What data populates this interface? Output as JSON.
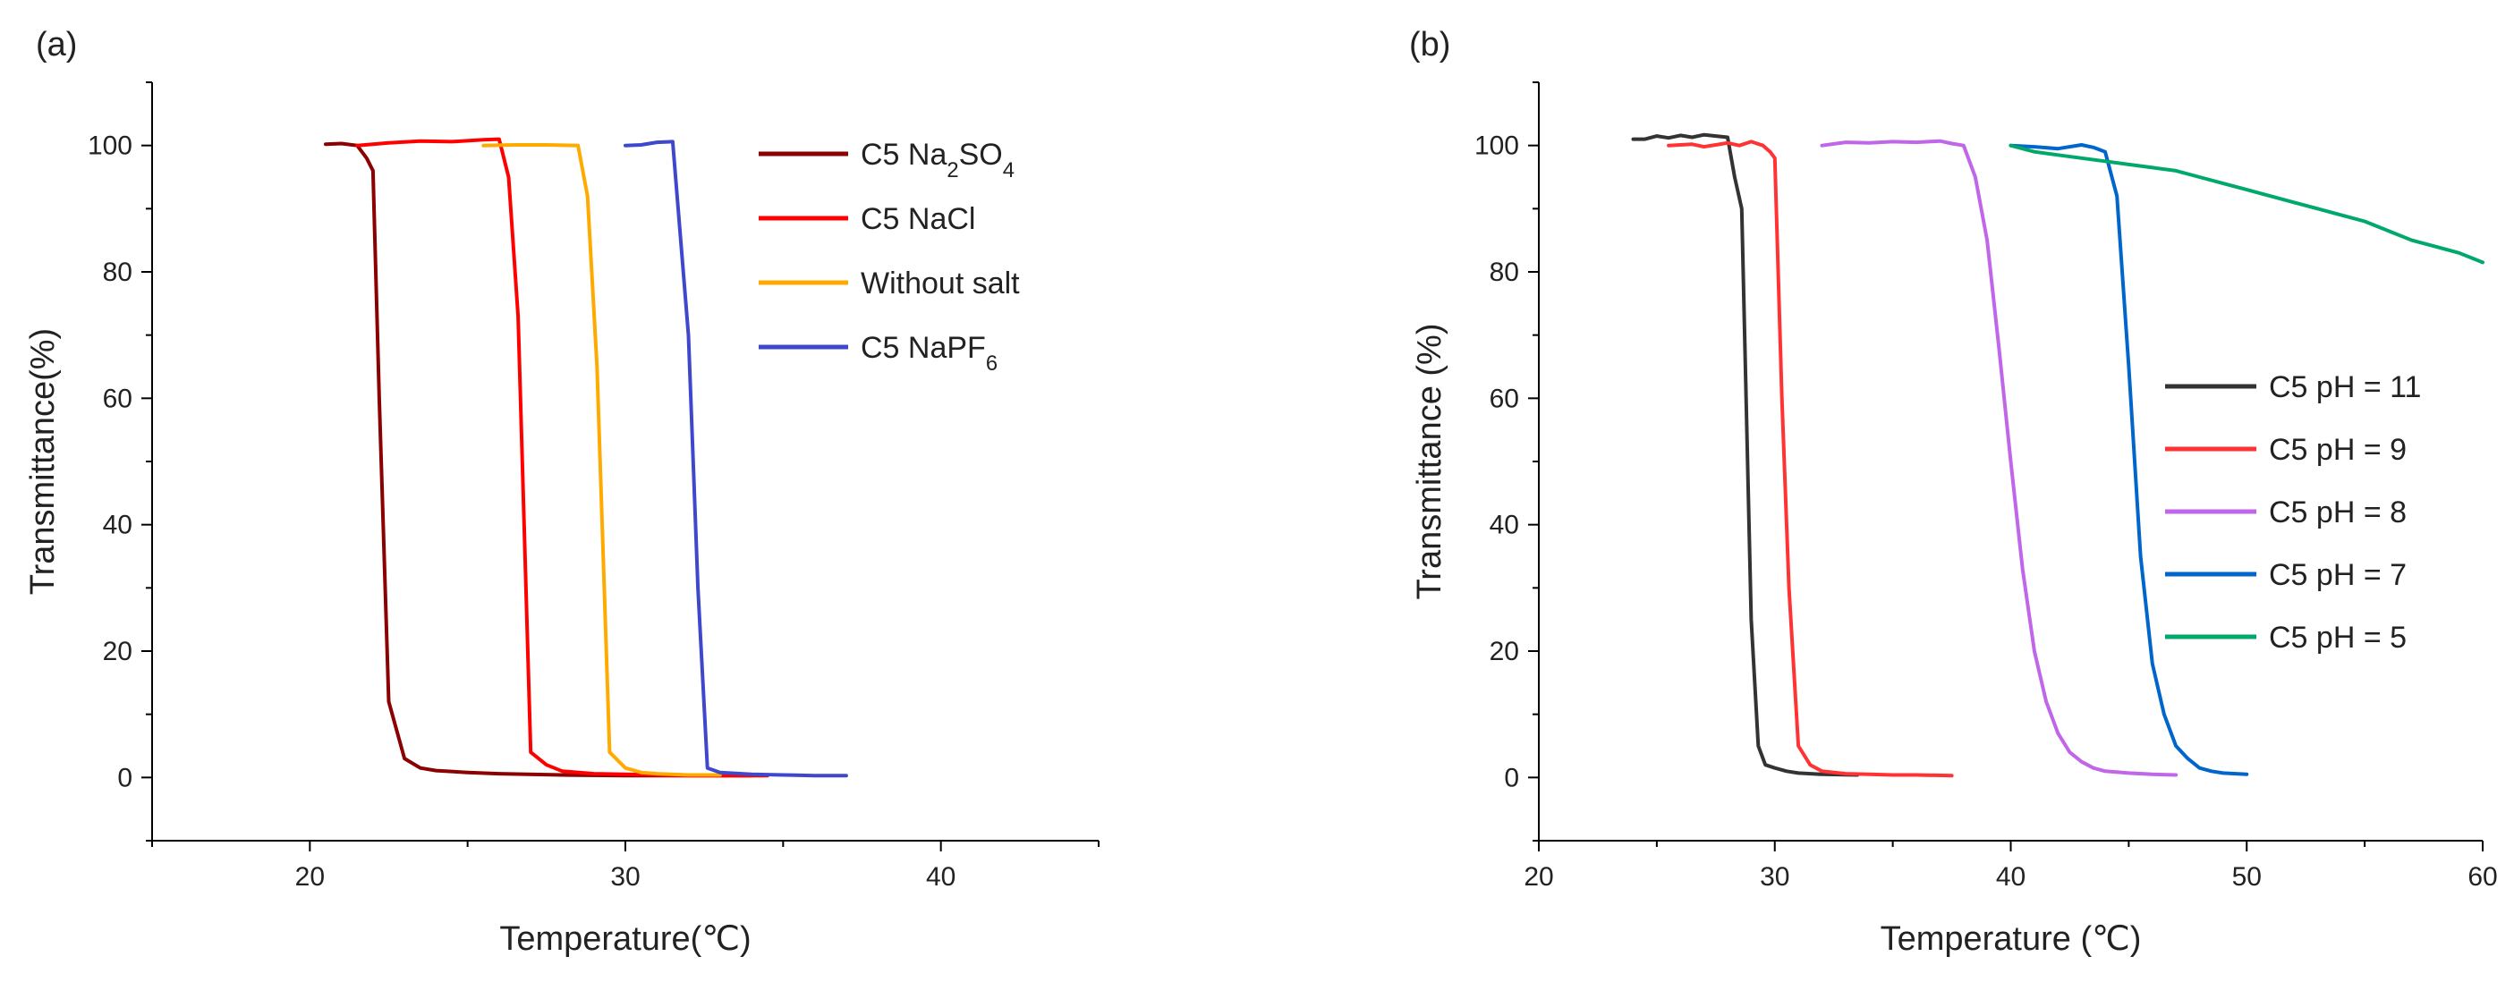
{
  "chart_data": [
    {
      "type": "line",
      "panel_label": "(a)",
      "xlabel": "Temperature(℃)",
      "ylabel": "Transmittance(%)",
      "xlim": [
        15,
        45
      ],
      "ylim": [
        -10,
        110
      ],
      "x_ticks": [
        20,
        30,
        40
      ],
      "y_ticks": [
        0,
        20,
        40,
        60,
        80,
        100
      ],
      "legend_position": "top-right",
      "series": [
        {
          "name": "C5 Na₂SO₄",
          "color": "#8b0000",
          "x": [
            20.5,
            21.0,
            21.5,
            21.8,
            22.0,
            22.2,
            22.5,
            23.0,
            23.5,
            24.0,
            25.0,
            26.0,
            28.0,
            30.0,
            32.0,
            34.0
          ],
          "y": [
            100.2,
            100.3,
            100,
            98,
            96,
            60,
            12,
            3,
            1.5,
            1.1,
            0.8,
            0.6,
            0.4,
            0.3,
            0.3,
            0.3
          ]
        },
        {
          "name": "C5 NaCl",
          "color": "#ff0000",
          "x": [
            21.5,
            22.5,
            23.5,
            24.5,
            25.5,
            26.0,
            26.3,
            26.6,
            27.0,
            27.5,
            28.0,
            29.0,
            30.0,
            32.0,
            34.5
          ],
          "y": [
            100,
            100.4,
            100.7,
            100.6,
            100.9,
            101,
            95,
            73,
            4,
            2,
            1,
            0.6,
            0.5,
            0.3,
            0.3
          ]
        },
        {
          "name": "Without salt",
          "color": "#ffaa00",
          "x": [
            25.5,
            26.5,
            27.5,
            28.5,
            28.8,
            29.1,
            29.5,
            30.0,
            30.5,
            31.0,
            32.0,
            33.0
          ],
          "y": [
            100,
            100.1,
            100.1,
            100,
            92,
            65,
            4,
            1.5,
            0.8,
            0.6,
            0.4,
            0.4
          ]
        },
        {
          "name": "C5 NaPF₆",
          "color": "#3f48cc",
          "x": [
            30.0,
            30.5,
            31.0,
            31.5,
            32.0,
            32.3,
            32.6,
            33.0,
            34.0,
            35.0,
            36.0,
            37.0
          ],
          "y": [
            100,
            100.1,
            100.5,
            100.6,
            70,
            30,
            1.5,
            0.8,
            0.5,
            0.4,
            0.3,
            0.3
          ]
        }
      ]
    },
    {
      "type": "line",
      "panel_label": "(b)",
      "xlabel": "Temperature (℃)",
      "ylabel": "Transmittance (%)",
      "xlim": [
        20,
        60
      ],
      "ylim": [
        -10,
        110
      ],
      "x_ticks": [
        20,
        30,
        40,
        50,
        60
      ],
      "y_ticks": [
        0,
        20,
        40,
        60,
        80,
        100
      ],
      "legend_position": "center-right",
      "series": [
        {
          "name": "C5 pH = 11",
          "color": "#333333",
          "x": [
            24.0,
            24.5,
            25.0,
            25.5,
            26.0,
            26.5,
            27.0,
            27.5,
            28.0,
            28.3,
            28.6,
            29.0,
            29.3,
            29.6,
            30.0,
            30.5,
            31.0,
            32.0,
            33.5
          ],
          "y": [
            101,
            101,
            101.5,
            101.2,
            101.6,
            101.3,
            101.7,
            101.5,
            101.3,
            95,
            90,
            25,
            5,
            2,
            1.5,
            1,
            0.7,
            0.5,
            0.4
          ]
        },
        {
          "name": "C5 pH = 9",
          "color": "#ff3333",
          "x": [
            25.5,
            26.5,
            27.0,
            27.5,
            28.0,
            28.5,
            29.0,
            29.5,
            29.8,
            30.0,
            30.3,
            30.6,
            31.0,
            31.5,
            32.0,
            33.0,
            34.0,
            35.0,
            36.0,
            37.5
          ],
          "y": [
            100,
            100.2,
            99.8,
            100.1,
            100.4,
            100,
            100.6,
            100,
            99,
            98,
            60,
            30,
            5,
            2,
            1,
            0.6,
            0.5,
            0.4,
            0.4,
            0.3
          ]
        },
        {
          "name": "C5 pH = 8",
          "color": "#c066e8",
          "x": [
            32.0,
            33.0,
            34.0,
            35.0,
            36.0,
            37.0,
            37.5,
            38.0,
            38.5,
            39.0,
            39.5,
            40.0,
            40.5,
            41.0,
            41.5,
            42.0,
            42.5,
            43.0,
            43.5,
            44.0,
            45.0,
            46.0,
            47.0
          ],
          "y": [
            100,
            100.5,
            100.4,
            100.6,
            100.5,
            100.7,
            100.3,
            100,
            95,
            85,
            68,
            50,
            33,
            20,
            12,
            7,
            4,
            2.5,
            1.5,
            1,
            0.7,
            0.5,
            0.4
          ]
        },
        {
          "name": "C5 pH = 7",
          "color": "#0066cc",
          "x": [
            40.0,
            41.0,
            42.0,
            43.0,
            43.5,
            44.0,
            44.5,
            45.0,
            45.5,
            46.0,
            46.5,
            47.0,
            47.5,
            48.0,
            48.5,
            49.0,
            50.0
          ],
          "y": [
            100,
            99.8,
            99.5,
            100.1,
            99.7,
            99,
            92,
            65,
            35,
            18,
            10,
            5,
            3,
            1.5,
            1,
            0.7,
            0.5
          ]
        },
        {
          "name": "C5 pH = 5",
          "color": "#00a86b",
          "x": [
            40,
            41,
            42,
            43,
            44,
            45,
            46,
            47,
            48,
            49,
            50,
            51,
            52,
            53,
            54,
            55,
            56,
            57,
            58,
            59,
            60
          ],
          "y": [
            100,
            99,
            98.5,
            98,
            97.5,
            97,
            96.5,
            96,
            95,
            94,
            93,
            92,
            91,
            90,
            89,
            88,
            86.5,
            85,
            84,
            83,
            81.5
          ]
        }
      ]
    }
  ]
}
